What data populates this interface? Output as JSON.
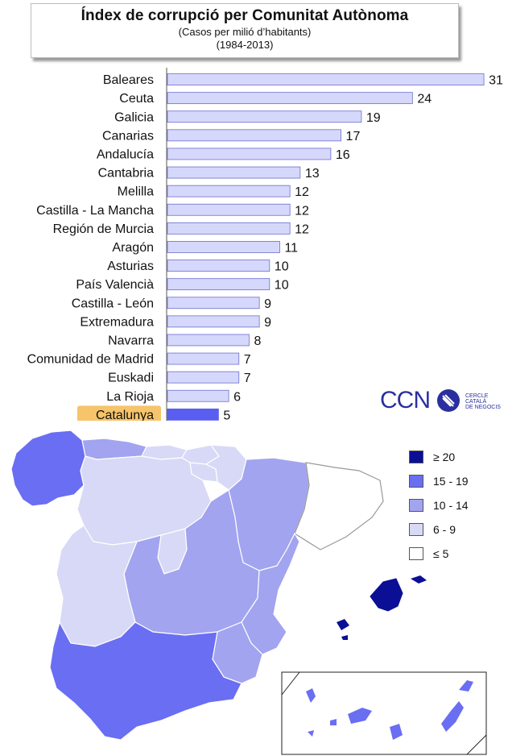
{
  "header": {
    "title": "Índex de corrupció per Comunitat Autònoma",
    "subtitle": "(Casos per milió d’habitants)",
    "period": "(1984-2013)"
  },
  "chart_data": {
    "type": "bar",
    "orientation": "horizontal",
    "title": "Índex de corrupció per Comunitat Autònoma",
    "subtitle": "(Casos per milió d’habitants)",
    "categories": [
      "Baleares",
      "Ceuta",
      "Galicia",
      "Canarias",
      "Andalucía",
      "Cantabria",
      "Melilla",
      "Castilla - La Mancha",
      "Región de Murcia",
      "Aragón",
      "Asturias",
      "País Valencià",
      "Castilla - León",
      "Extremadura",
      "Navarra",
      "Comunidad de Madrid",
      "Euskadi",
      "La Rioja",
      "Catalunya"
    ],
    "values": [
      31,
      24,
      19,
      17,
      16,
      13,
      12,
      12,
      12,
      11,
      10,
      10,
      9,
      9,
      8,
      7,
      7,
      6,
      5
    ],
    "highlight": "Catalunya",
    "colors": {
      "bar": "#d6d8fb",
      "bar_border": "#6a6ecf",
      "highlight_bar": "#5a5ef0",
      "highlight_label_bg": "#f6c46a"
    }
  },
  "logo": {
    "text": "CCN",
    "tagline": [
      "CERCLE",
      "CATALÀ",
      "DE NEGOCIS"
    ]
  },
  "legend": [
    {
      "label": "≥ 20",
      "color": "#0a0f96"
    },
    {
      "label": "15 - 19",
      "color": "#6a6ef2"
    },
    {
      "label": "10 - 14",
      "color": "#a2a4f0"
    },
    {
      "label": "6 - 9",
      "color": "#d8d9f6"
    },
    {
      "label": "≤ 5",
      "color": "#ffffff"
    }
  ]
}
